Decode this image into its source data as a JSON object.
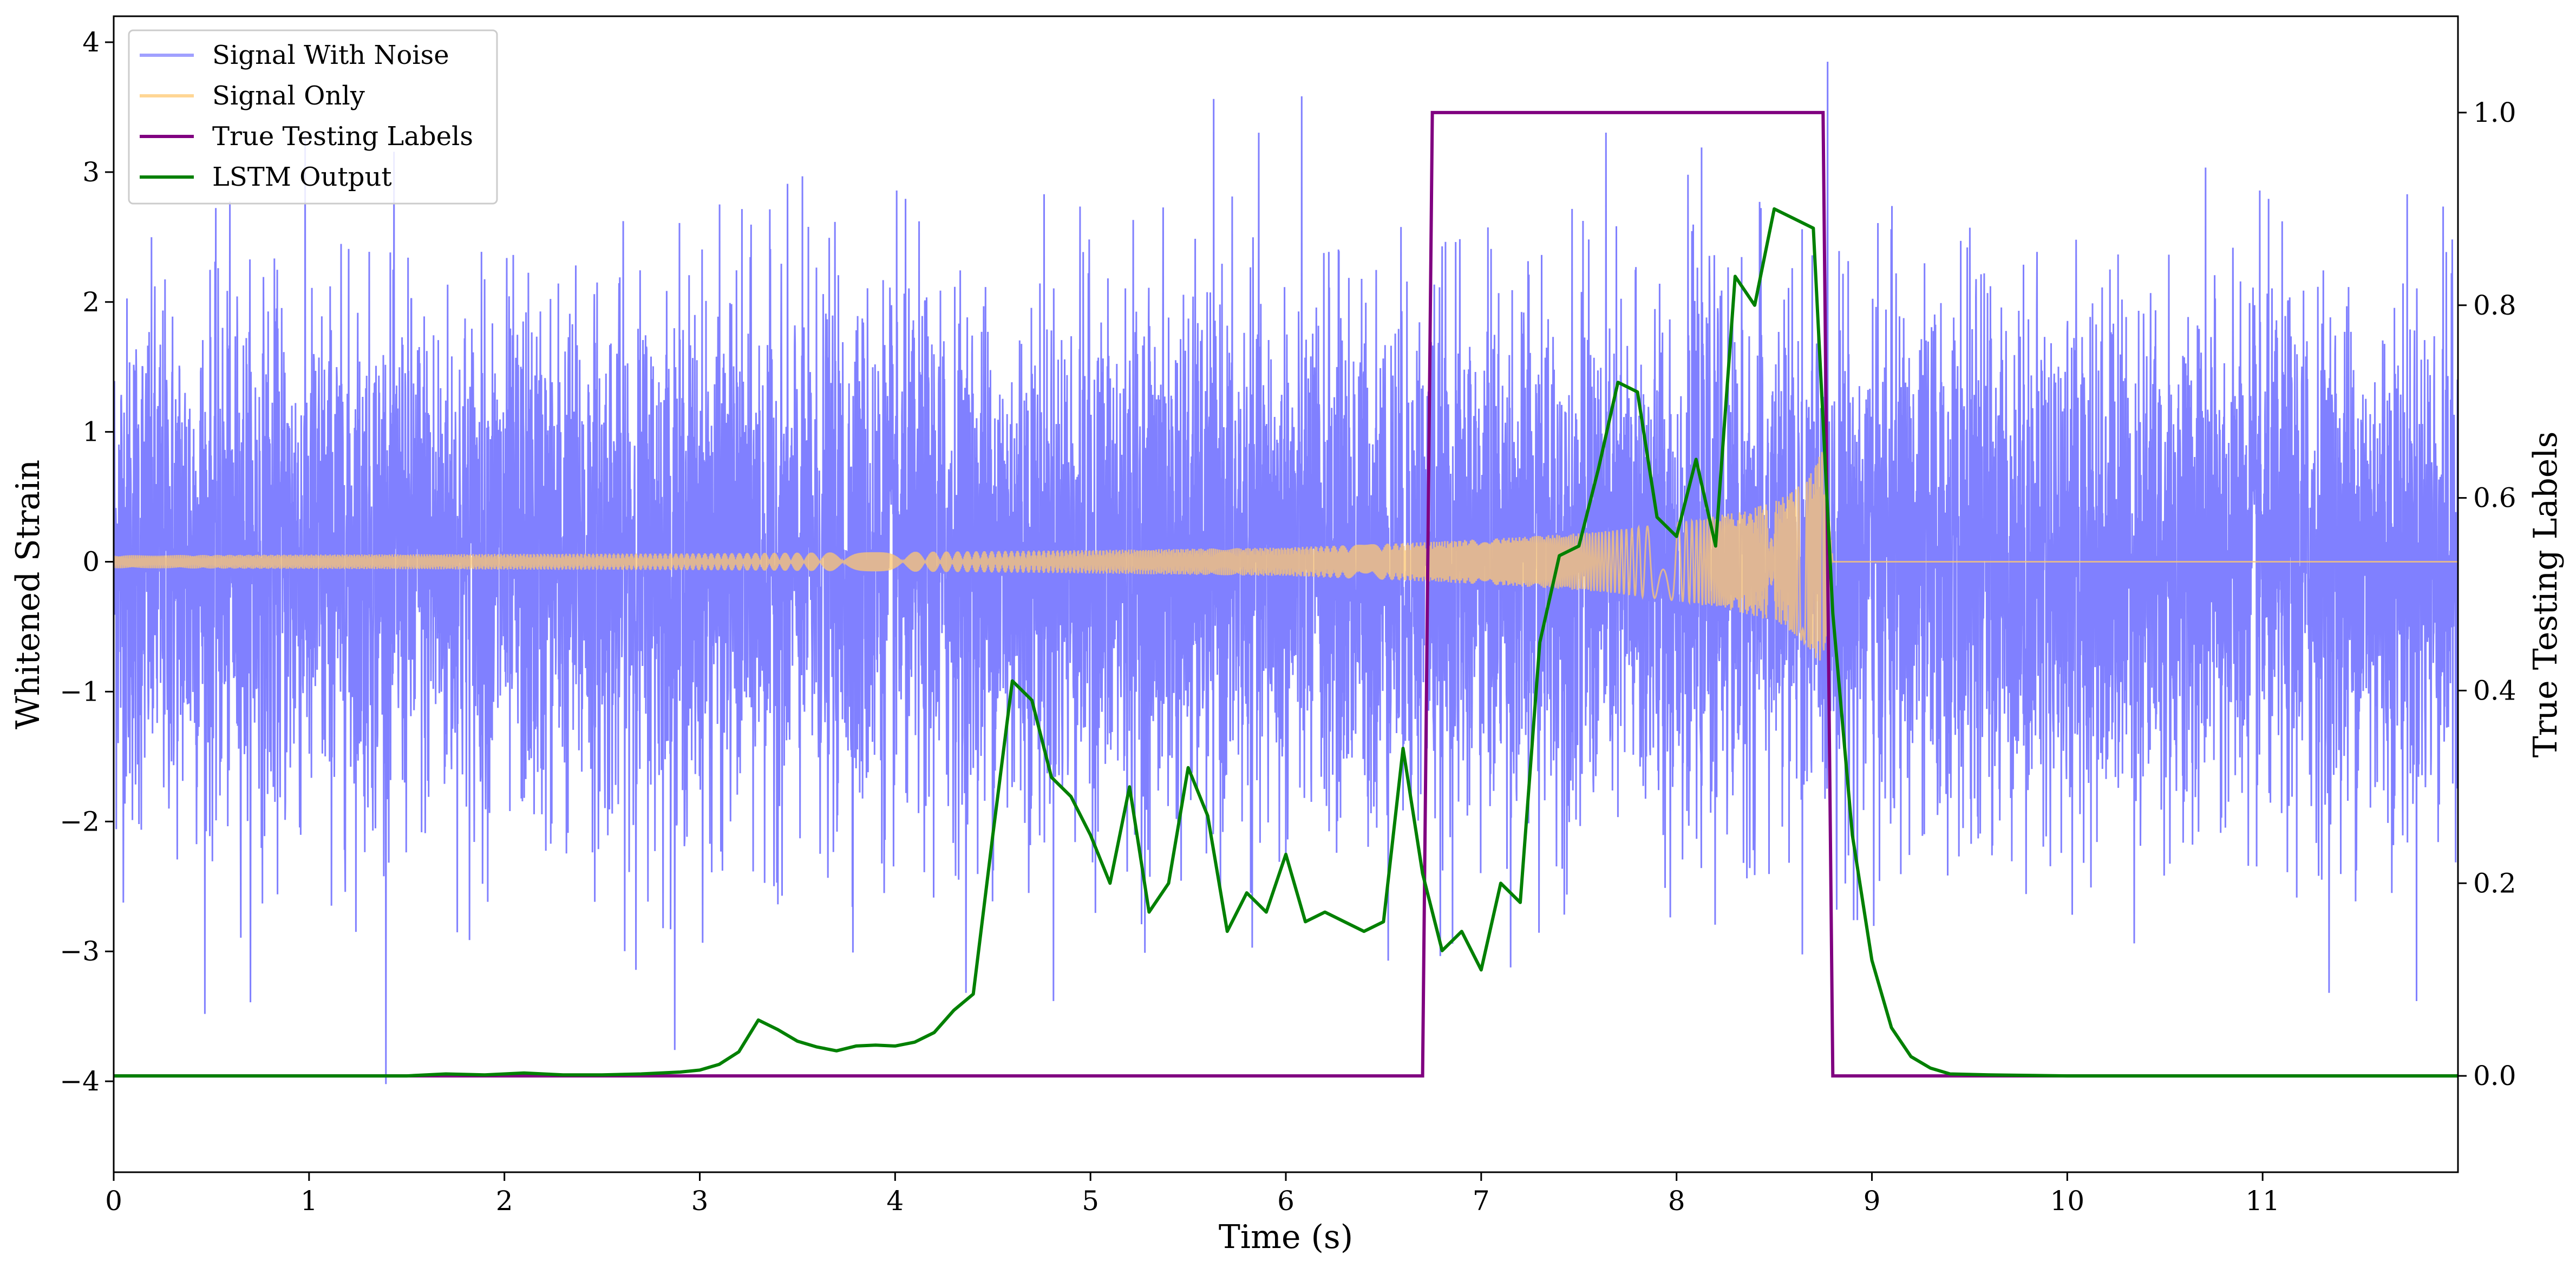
{
  "chart_data": {
    "type": "line",
    "title": "",
    "xlabel": "Time (s)",
    "ylabel": "Whitened Strain",
    "y2label": "True Testing Labels",
    "xlim": [
      0,
      12
    ],
    "ylim": [
      -4.7,
      4.2
    ],
    "y2lim": [
      -0.1,
      1.1
    ],
    "x_ticks": [
      "0",
      "1",
      "2",
      "3",
      "4",
      "5",
      "6",
      "7",
      "8",
      "9",
      "10",
      "11"
    ],
    "y_ticks": [
      "−4",
      "−3",
      "−2",
      "−1",
      "0",
      "1",
      "2",
      "3",
      "4"
    ],
    "y2_ticks": [
      "0.0",
      "0.2",
      "0.4",
      "0.6",
      "0.8",
      "1.0"
    ],
    "grid": false,
    "legend_position": "top-left",
    "series": [
      {
        "name": "Signal With Noise",
        "axis": "left",
        "color": "#8080ff",
        "description_range": [
          -4.3,
          3.85
        ],
        "duration": [
          0,
          12
        ]
      },
      {
        "name": "Signal Only",
        "axis": "left",
        "color": "#ffc870",
        "envelope": {
          "x": [
            0,
            1,
            2,
            3,
            4,
            5,
            6,
            6.7,
            7.2,
            7.6,
            8.0,
            8.3,
            8.5,
            8.6,
            8.7,
            8.75,
            8.8
          ],
          "amplitude": [
            0.05,
            0.055,
            0.06,
            0.065,
            0.075,
            0.09,
            0.11,
            0.15,
            0.19,
            0.23,
            0.3,
            0.38,
            0.46,
            0.55,
            0.7,
            0.9,
            0.0
          ]
        }
      },
      {
        "name": "True Testing Labels",
        "axis": "right",
        "color": "#800080",
        "x": [
          0,
          6.7,
          6.75,
          8.75,
          8.8,
          12
        ],
        "y": [
          0,
          0,
          1,
          1,
          0,
          0
        ]
      },
      {
        "name": "LSTM Output",
        "axis": "right",
        "color": "#008000",
        "x": [
          0,
          1.5,
          1.7,
          1.9,
          2.1,
          2.3,
          2.5,
          2.7,
          2.9,
          3.0,
          3.1,
          3.2,
          3.3,
          3.4,
          3.5,
          3.6,
          3.7,
          3.8,
          3.9,
          4.0,
          4.1,
          4.2,
          4.3,
          4.4,
          4.5,
          4.6,
          4.7,
          4.8,
          4.9,
          5.0,
          5.1,
          5.2,
          5.3,
          5.4,
          5.5,
          5.6,
          5.7,
          5.8,
          5.9,
          6.0,
          6.1,
          6.2,
          6.3,
          6.4,
          6.5,
          6.6,
          6.7,
          6.8,
          6.9,
          7.0,
          7.1,
          7.2,
          7.3,
          7.4,
          7.5,
          7.6,
          7.7,
          7.8,
          7.9,
          8.0,
          8.1,
          8.2,
          8.3,
          8.4,
          8.5,
          8.6,
          8.7,
          8.8,
          8.9,
          9.0,
          9.1,
          9.2,
          9.3,
          9.4,
          9.6,
          10,
          11,
          12
        ],
        "y": [
          0,
          0,
          0.002,
          0.001,
          0.003,
          0.001,
          0.001,
          0.002,
          0.004,
          0.006,
          0.012,
          0.025,
          0.058,
          0.048,
          0.036,
          0.03,
          0.026,
          0.031,
          0.032,
          0.031,
          0.035,
          0.045,
          0.068,
          0.085,
          0.25,
          0.41,
          0.39,
          0.31,
          0.29,
          0.25,
          0.2,
          0.3,
          0.17,
          0.2,
          0.32,
          0.27,
          0.15,
          0.19,
          0.17,
          0.23,
          0.16,
          0.17,
          0.16,
          0.15,
          0.16,
          0.34,
          0.21,
          0.13,
          0.15,
          0.11,
          0.2,
          0.18,
          0.45,
          0.54,
          0.55,
          0.63,
          0.72,
          0.71,
          0.58,
          0.56,
          0.64,
          0.55,
          0.83,
          0.8,
          0.9,
          0.89,
          0.88,
          0.48,
          0.25,
          0.12,
          0.05,
          0.02,
          0.008,
          0.002,
          0.001,
          0,
          0,
          0
        ]
      }
    ]
  }
}
